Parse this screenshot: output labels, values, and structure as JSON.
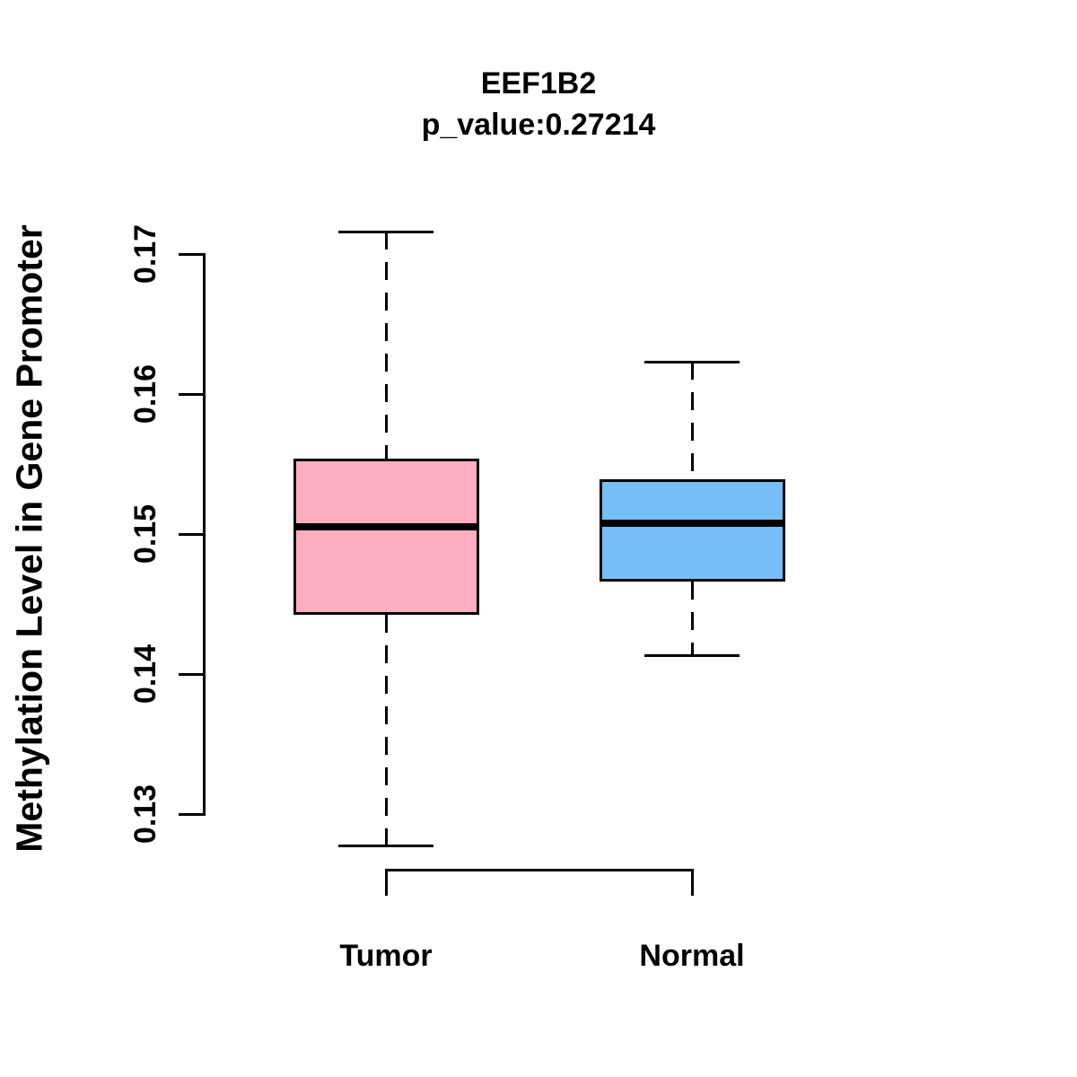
{
  "chart_data": {
    "type": "boxplot",
    "title": "EEF1B2",
    "subtitle": "p_value:0.27214",
    "ylabel": "Methylation Level in Gene Promoter",
    "xlabel": "",
    "ylim": [
      0.13,
      0.17
    ],
    "yticks": [
      0.13,
      0.14,
      0.15,
      0.16,
      0.17
    ],
    "ytick_labels": [
      "0.13",
      "0.14",
      "0.15",
      "0.16",
      "0.17"
    ],
    "categories": [
      "Tumor",
      "Normal"
    ],
    "grid": false,
    "legend": "none",
    "background_color": "#FFFFFF",
    "line_color": "#000000",
    "series": [
      {
        "name": "Tumor",
        "color": "#FFAEC2",
        "whisker_low": 0.1277,
        "q1": 0.1442,
        "median": 0.1505,
        "q3": 0.1554,
        "whisker_high": 0.1716
      },
      {
        "name": "Normal",
        "color": "#76BFF6",
        "whisker_low": 0.1413,
        "q1": 0.1466,
        "median": 0.1508,
        "q3": 0.1539,
        "whisker_high": 0.1623
      }
    ]
  }
}
